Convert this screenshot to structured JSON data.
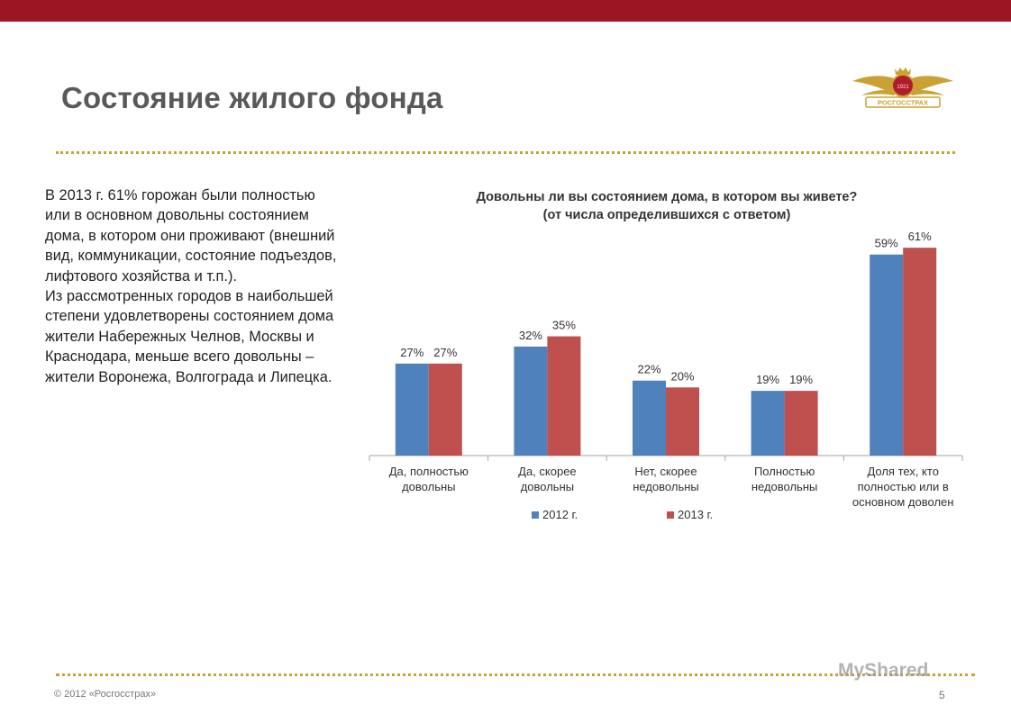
{
  "slide": {
    "title": "Состояние жилого фонда",
    "paragraphs": [
      "В 2013 г. 61% горожан были полностью или в основном довольны состоянием дома, в котором они проживают (внешний вид, коммуникации, состояние подъездов, лифтового хозяйства и т.п.).",
      "Из рассмотренных городов в наибольшей степени удовлетворены состоянием дома жители Набережных Челнов, Москвы и Краснодара, меньше всего довольны – жители Воронежа, Волгограда и Липецка."
    ],
    "footer": "© 2012 «Росгосстрах»",
    "page_number": "5",
    "watermark": "MyShared"
  },
  "logo": {
    "year": "1921",
    "text": "РОСГОССТРАХ",
    "colors": {
      "wing": "#c9a233",
      "badge": "#b01c2e"
    }
  },
  "colors": {
    "accent_bar": "#9b1522",
    "dots": "#c9a233",
    "series_2012": "#4f81bd",
    "series_2013": "#c0504d"
  },
  "chart_data": {
    "type": "bar",
    "title": "Довольны ли вы состоянием дома, в котором вы живете?",
    "subtitle": "(от числа определившихся с ответом)",
    "categories": [
      [
        "Да, полностью",
        "довольны"
      ],
      [
        "Да, скорее",
        "довольны"
      ],
      [
        "Нет, скорее",
        "недовольны"
      ],
      [
        "Полностью",
        "недовольны"
      ],
      [
        "Доля тех, кто",
        "полностью или в",
        "основном доволен"
      ]
    ],
    "series": [
      {
        "name": "2012 г.",
        "values": [
          27,
          32,
          22,
          19,
          59
        ],
        "labels": [
          "27%",
          "32%",
          "22%",
          "19%",
          "59%"
        ],
        "color": "#4f81bd"
      },
      {
        "name": "2013 г.",
        "values": [
          27,
          35,
          20,
          19,
          61
        ],
        "labels": [
          "27%",
          "35%",
          "20%",
          "19%",
          "61%"
        ],
        "color": "#c0504d"
      }
    ],
    "ylim": [
      0,
      65
    ],
    "grid": false,
    "legend": "bottom"
  }
}
